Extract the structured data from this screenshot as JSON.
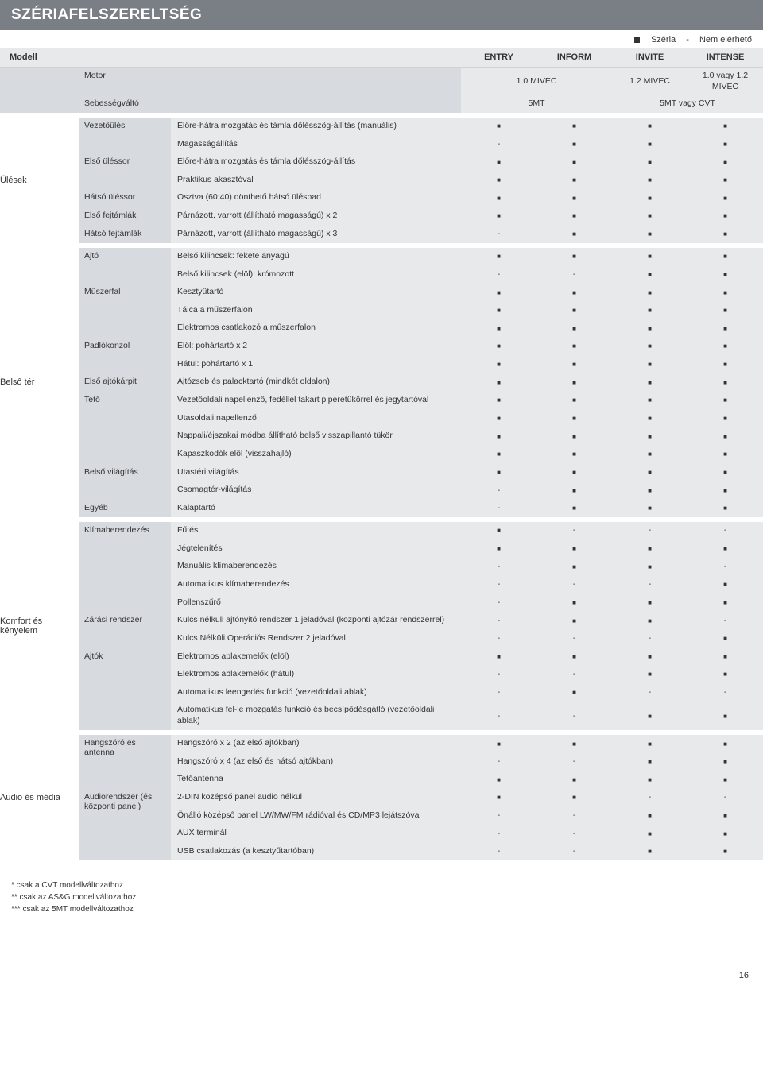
{
  "title": "SZÉRIAFELSZERELTSÉG",
  "legend": {
    "std": "Széria",
    "na": "Nem elérhető"
  },
  "header": {
    "modell": "Modell",
    "trims": [
      "ENTRY",
      "INFORM",
      "INVITE",
      "INTENSE"
    ],
    "motor_label": "Motor",
    "motor_vals": [
      "1.0 MIVEC",
      "1.2 MIVEC",
      "1.0 vagy 1.2 MIVEC"
    ],
    "trans_label": "Sebességváltó",
    "trans_vals": [
      "5MT",
      "5MT vagy CVT"
    ]
  },
  "sections": [
    {
      "name": "Ülések",
      "groups": [
        {
          "label": "Vezetőülés",
          "rows": [
            {
              "f": "Előre-hátra mozgatás és támla dőlésszög-állítás (manuális)",
              "v": [
                "y",
                "y",
                "y",
                "y"
              ]
            },
            {
              "f": "Magasságállítás",
              "v": [
                "n",
                "y",
                "y",
                "y"
              ]
            }
          ]
        },
        {
          "label": "Első üléssor",
          "rows": [
            {
              "f": "Előre-hátra mozgatás és támla dőlésszög-állítás",
              "v": [
                "y",
                "y",
                "y",
                "y"
              ]
            },
            {
              "f": "Praktikus akasztóval",
              "v": [
                "y",
                "y",
                "y",
                "y"
              ]
            }
          ]
        },
        {
          "label": "Hátsó üléssor",
          "rows": [
            {
              "f": "Osztva (60:40) dönthető hátsó üléspad",
              "v": [
                "y",
                "y",
                "y",
                "y"
              ]
            }
          ]
        },
        {
          "label": "Első fejtámlák",
          "rows": [
            {
              "f": "Párnázott, varrott (állítható magasságú) x 2",
              "v": [
                "y",
                "y",
                "y",
                "y"
              ]
            }
          ]
        },
        {
          "label": "Hátsó fejtámlák",
          "rows": [
            {
              "f": "Párnázott, varrott (állítható magasságú) x 3",
              "v": [
                "n",
                "y",
                "y",
                "y"
              ]
            }
          ]
        }
      ]
    },
    {
      "name": "Belső tér",
      "groups": [
        {
          "label": "Ajtó",
          "rows": [
            {
              "f": "Belső kilincsek: fekete anyagú",
              "v": [
                "y",
                "y",
                "y",
                "y"
              ]
            },
            {
              "f": "Belső kilincsek (elöl): krómozott",
              "v": [
                "n",
                "n",
                "y",
                "y"
              ]
            }
          ]
        },
        {
          "label": "Műszerfal",
          "rows": [
            {
              "f": "Kesztyűtartó",
              "v": [
                "y",
                "y",
                "y",
                "y"
              ]
            },
            {
              "f": "Tálca a műszerfalon",
              "v": [
                "y",
                "y",
                "y",
                "y"
              ]
            },
            {
              "f": "Elektromos csatlakozó a műszerfalon",
              "v": [
                "y",
                "y",
                "y",
                "y"
              ]
            }
          ]
        },
        {
          "label": "Padlókonzol",
          "rows": [
            {
              "f": "Elöl: pohártartó x 2",
              "v": [
                "y",
                "y",
                "y",
                "y"
              ]
            },
            {
              "f": "Hátul: pohártartó x 1",
              "v": [
                "y",
                "y",
                "y",
                "y"
              ]
            }
          ]
        },
        {
          "label": "Első ajtókárpit",
          "rows": [
            {
              "f": "Ajtózseb és palacktartó (mindkét oldalon)",
              "v": [
                "y",
                "y",
                "y",
                "y"
              ]
            }
          ]
        },
        {
          "label": "Tető",
          "rows": [
            {
              "f": "Vezetőoldali napellenző, fedéllel takart piperetükörrel és jegytartóval",
              "v": [
                "y",
                "y",
                "y",
                "y"
              ]
            },
            {
              "f": "Utasoldali napellenző",
              "v": [
                "y",
                "y",
                "y",
                "y"
              ]
            },
            {
              "f": "Nappali/éjszakai módba állítható belső visszapillantó tükör",
              "v": [
                "y",
                "y",
                "y",
                "y"
              ]
            },
            {
              "f": "Kapaszkodók elöl (visszahajló)",
              "v": [
                "y",
                "y",
                "y",
                "y"
              ]
            }
          ]
        },
        {
          "label": "Belső világítás",
          "rows": [
            {
              "f": "Utastéri világítás",
              "v": [
                "y",
                "y",
                "y",
                "y"
              ]
            },
            {
              "f": "Csomagtér-világítás",
              "v": [
                "n",
                "y",
                "y",
                "y"
              ]
            }
          ]
        },
        {
          "label": "Egyéb",
          "rows": [
            {
              "f": "Kalaptartó",
              "v": [
                "n",
                "y",
                "y",
                "y"
              ]
            }
          ]
        }
      ]
    },
    {
      "name": "Komfort és kényelem",
      "groups": [
        {
          "label": "Klímaberendezés",
          "rows": [
            {
              "f": "Fűtés",
              "v": [
                "y",
                "n",
                "n",
                "n"
              ]
            },
            {
              "f": "Jégtelenítés",
              "v": [
                "y",
                "y",
                "y",
                "y"
              ]
            },
            {
              "f": "Manuális klímaberendezés",
              "v": [
                "n",
                "y",
                "y",
                "n"
              ]
            },
            {
              "f": "Automatikus klímaberendezés",
              "v": [
                "n",
                "n",
                "n",
                "y"
              ]
            },
            {
              "f": "Pollenszűrő",
              "v": [
                "n",
                "y",
                "y",
                "y"
              ]
            }
          ]
        },
        {
          "label": "Zárási rendszer",
          "rows": [
            {
              "f": "Kulcs nélküli ajtónyitó rendszer 1 jeladóval (központi ajtózár rendszerrel)",
              "v": [
                "n",
                "y",
                "y",
                "n"
              ]
            },
            {
              "f": "Kulcs Nélküli Operációs Rendszer 2 jeladóval",
              "v": [
                "n",
                "n",
                "n",
                "y"
              ]
            }
          ]
        },
        {
          "label": "Ajtók",
          "rows": [
            {
              "f": "Elektromos ablakemelők (elöl)",
              "v": [
                "y",
                "y",
                "y",
                "y"
              ]
            },
            {
              "f": "Elektromos ablakemelők (hátul)",
              "v": [
                "n",
                "n",
                "y",
                "y"
              ]
            },
            {
              "f": "Automatikus leengedés funkció (vezetőoldali ablak)",
              "v": [
                "n",
                "y",
                "n",
                "n"
              ]
            },
            {
              "f": "Automatikus fel-le mozgatás funkció és becsípődésgátló (vezetőoldali ablak)",
              "v": [
                "n",
                "n",
                "y",
                "y"
              ]
            }
          ]
        }
      ]
    },
    {
      "name": "Audio és média",
      "groups": [
        {
          "label": "Hangszóró és antenna",
          "rows": [
            {
              "f": "Hangszóró x 2 (az első ajtókban)",
              "v": [
                "y",
                "y",
                "y",
                "y"
              ]
            },
            {
              "f": "Hangszóró x 4 (az első és hátsó ajtókban)",
              "v": [
                "n",
                "n",
                "y",
                "y"
              ]
            },
            {
              "f": "Tetőantenna",
              "v": [
                "y",
                "y",
                "y",
                "y"
              ]
            }
          ]
        },
        {
          "label": "Audiorendszer (és központi panel)",
          "rows": [
            {
              "f": "2-DIN középső panel audio nélkül",
              "v": [
                "y",
                "y",
                "n",
                "n"
              ]
            },
            {
              "f": "Önálló középső panel LW/MW/FM rádióval és CD/MP3 lejátszóval",
              "v": [
                "n",
                "n",
                "y",
                "y"
              ]
            },
            {
              "f": "AUX terminál",
              "v": [
                "n",
                "n",
                "y",
                "y"
              ]
            },
            {
              "f": "USB csatlakozás (a kesztyűtartóban)",
              "v": [
                "n",
                "n",
                "y",
                "y"
              ]
            }
          ]
        }
      ]
    }
  ],
  "footnotes": [
    "* csak a CVT modellváltozathoz",
    "** csak az AS&G modellváltozathoz",
    "*** csak az 5MT modellváltozathoz"
  ],
  "page_number": "16",
  "colors": {
    "title_bg": "#7a7e85",
    "header_bg": "#e8e9eb",
    "subhdr_bg": "#d7dadf",
    "feature_bg": "#e8e9eb",
    "text": "#333333"
  }
}
